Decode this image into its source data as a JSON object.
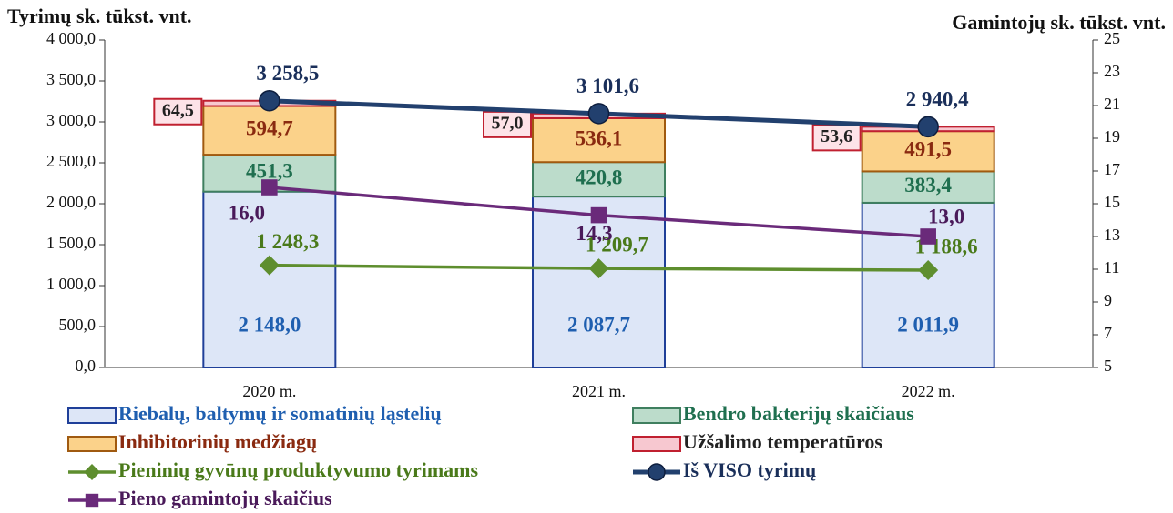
{
  "chart_data": {
    "type": "bar",
    "stacked": true,
    "y_label": "Tyrimų sk. tūkst. vnt.",
    "y2_label": "Gamintojų sk. tūkst. vnt.",
    "categories": [
      "2020 m.",
      "2021 m.",
      "2022 m."
    ],
    "ylim": [
      0,
      4000
    ],
    "yticks": [
      {
        "value": 0,
        "label": "0,0"
      },
      {
        "value": 500,
        "label": "500,0"
      },
      {
        "value": 1000,
        "label": "1 000,0"
      },
      {
        "value": 1500,
        "label": "1 500,0"
      },
      {
        "value": 2000,
        "label": "2 000,0"
      },
      {
        "value": 2500,
        "label": "2 500,0"
      },
      {
        "value": 3000,
        "label": "3 000,0"
      },
      {
        "value": 3500,
        "label": "3 500,0"
      },
      {
        "value": 4000,
        "label": "4 000,0"
      }
    ],
    "y2lim": [
      5,
      25
    ],
    "y2ticks": [
      5,
      7,
      9,
      11,
      13,
      15,
      17,
      19,
      21,
      23,
      25
    ],
    "series": [
      {
        "name": "Riebalų, baltymų ir somatinių ląstelių",
        "type": "bar",
        "color": "#dde6f7",
        "edge_color": "#1f3f99",
        "label_color": "#1f5fb0",
        "values": [
          2148.0,
          2087.7,
          2011.9
        ],
        "value_labels": [
          "2 148,0",
          "2 087,7",
          "2 011,9"
        ]
      },
      {
        "name": "Bendro bakterijų skaičiaus",
        "type": "bar",
        "color": "#bcdccb",
        "edge_color": "#3f7f5f",
        "label_color": "#1f6f4f",
        "values": [
          451.3,
          420.8,
          383.4
        ],
        "value_labels": [
          "451,3",
          "420,8",
          "383,4"
        ]
      },
      {
        "name": "Inhibitorinių medžiagų",
        "type": "bar",
        "color": "#fbd28a",
        "edge_color": "#a05a10",
        "label_color": "#8a2a10",
        "values": [
          594.7,
          536.1,
          491.5
        ],
        "value_labels": [
          "594,7",
          "536,1",
          "491,5"
        ]
      },
      {
        "name": "Užšalimo temperatūros",
        "type": "bar",
        "color": "#f7c8d0",
        "edge_color": "#c02030",
        "label_color": "#222222",
        "values": [
          64.5,
          57.0,
          53.6
        ],
        "value_labels": [
          "64,5",
          "57,0",
          "53,6"
        ]
      },
      {
        "name": "Pieninių gyvūnų produktyvumo tyrimams",
        "type": "line",
        "marker": "diamond",
        "color": "#5e8e2e",
        "label_color": "#4a7a1a",
        "values": [
          1248.3,
          1209.7,
          1188.6
        ],
        "value_labels": [
          "1 248,3",
          "1 209,7",
          "1 188,6"
        ]
      },
      {
        "name": "Iš VISO tyrimų",
        "type": "line",
        "marker": "circle",
        "color": "#22406e",
        "label_color": "#1a2f5a",
        "values": [
          3258.5,
          3101.6,
          2940.4
        ],
        "value_labels": [
          "3 258,5",
          "3 101,6",
          "2 940,4"
        ]
      },
      {
        "name": "Pieno gamintojų skaičius",
        "type": "line",
        "axis": "y2",
        "marker": "square",
        "color": "#6a2a7a",
        "label_color": "#4a1a5a",
        "values": [
          16.0,
          14.3,
          13.0
        ],
        "value_labels": [
          "16,0",
          "14,3",
          "13,0"
        ]
      }
    ]
  }
}
